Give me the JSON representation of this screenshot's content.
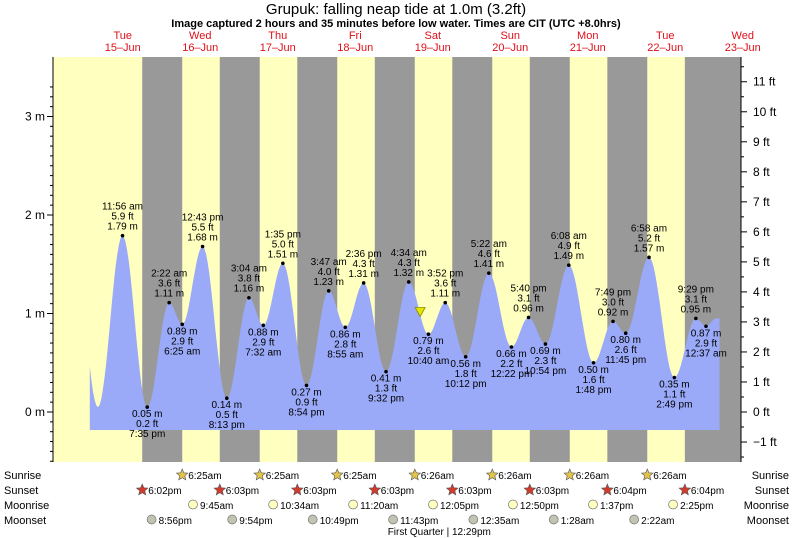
{
  "header": {
    "title": "Grupuk: falling  neap tide at 1.0m (3.2ft)",
    "subtitle": "Image captured 2 hours and 35 minutes before low water. Times are CIT (UTC +8.0hrs)"
  },
  "days": [
    {
      "dow": "Tue",
      "date": "15–Jun"
    },
    {
      "dow": "Wed",
      "date": "16–Jun"
    },
    {
      "dow": "Thu",
      "date": "17–Jun"
    },
    {
      "dow": "Fri",
      "date": "18–Jun"
    },
    {
      "dow": "Sat",
      "date": "19–Jun"
    },
    {
      "dow": "Sun",
      "date": "20–Jun"
    },
    {
      "dow": "Mon",
      "date": "21–Jun"
    },
    {
      "dow": "Tue",
      "date": "22–Jun"
    },
    {
      "dow": "Wed",
      "date": "23–Jun"
    }
  ],
  "chart_data": {
    "type": "area",
    "title": "Grupuk: falling  neap tide at 1.0m (3.2ft)",
    "x_unit": "hours from 15-Jun 00:00 (CIT)",
    "y_left": {
      "unit": "m",
      "ticks": [
        "0 m",
        "1 m",
        "2 m",
        "3 m"
      ],
      "range": [
        -0.55,
        3.4
      ]
    },
    "y_right": {
      "unit": "ft",
      "ticks": [
        "−1 ft",
        "0 ft",
        "1 ft",
        "2 ft",
        "3 ft",
        "4 ft",
        "5 ft",
        "6 ft",
        "7 ft",
        "8 ft",
        "9 ft",
        "10 ft",
        "11 ft"
      ]
    },
    "current_level_m": 1.0,
    "extremes": [
      {
        "x": 11.93,
        "m": 1.79,
        "time": "11:56 am",
        "ft": "5.9 ft",
        "mt": "1.79 m",
        "pos": "above"
      },
      {
        "x": 19.58,
        "m": 0.05,
        "time": "7:35 pm",
        "ft": "0.2 ft",
        "mt": "0.05 m",
        "pos": "below"
      },
      {
        "x": 26.37,
        "m": 1.11,
        "time": "2:22 am",
        "ft": "3.6 ft",
        "mt": "1.11 m",
        "pos": "above"
      },
      {
        "x": 30.42,
        "m": 0.89,
        "time": "6:25 am",
        "ft": "2.9 ft",
        "mt": "0.89 m",
        "pos": "below"
      },
      {
        "x": 36.72,
        "m": 1.68,
        "time": "12:43 pm",
        "ft": "5.5 ft",
        "mt": "1.68 m",
        "pos": "above"
      },
      {
        "x": 44.22,
        "m": 0.14,
        "time": "8:13 pm",
        "ft": "0.5 ft",
        "mt": "0.14 m",
        "pos": "below"
      },
      {
        "x": 51.07,
        "m": 1.16,
        "time": "3:04 am",
        "ft": "3.8 ft",
        "mt": "1.16 m",
        "pos": "above"
      },
      {
        "x": 55.53,
        "m": 0.88,
        "time": "7:32 am",
        "ft": "2.9 ft",
        "mt": "0.88 m",
        "pos": "below"
      },
      {
        "x": 61.58,
        "m": 1.51,
        "time": "1:35 pm",
        "ft": "5.0 ft",
        "mt": "1.51 m",
        "pos": "above"
      },
      {
        "x": 68.9,
        "m": 0.27,
        "time": "8:54 pm",
        "ft": "0.9 ft",
        "mt": "0.27 m",
        "pos": "below"
      },
      {
        "x": 75.78,
        "m": 1.23,
        "time": "3:47 am",
        "ft": "4.0 ft",
        "mt": "1.23 m",
        "pos": "above"
      },
      {
        "x": 80.92,
        "m": 0.86,
        "time": "8:55 am",
        "ft": "2.8 ft",
        "mt": "0.86 m",
        "pos": "below"
      },
      {
        "x": 86.6,
        "m": 1.31,
        "time": "2:36 pm",
        "ft": "4.3 ft",
        "mt": "1.31 m",
        "pos": "above"
      },
      {
        "x": 93.53,
        "m": 0.41,
        "time": "9:32 pm",
        "ft": "1.3 ft",
        "mt": "0.41 m",
        "pos": "below"
      },
      {
        "x": 100.57,
        "m": 1.32,
        "time": "4:34 am",
        "ft": "4.3 ft",
        "mt": "1.32 m",
        "pos": "above"
      },
      {
        "x": 106.67,
        "m": 0.79,
        "time": "10:40 am",
        "ft": "2.6 ft",
        "mt": "0.79 m",
        "pos": "below"
      },
      {
        "x": 111.87,
        "m": 1.11,
        "time": "3:52 pm",
        "ft": "3.6 ft",
        "mt": "1.11 m",
        "pos": "above"
      },
      {
        "x": 118.2,
        "m": 0.56,
        "time": "10:12 pm",
        "ft": "1.8 ft",
        "mt": "0.56 m",
        "pos": "below"
      },
      {
        "x": 125.37,
        "m": 1.41,
        "time": "5:22 am",
        "ft": "4.6 ft",
        "mt": "1.41 m",
        "pos": "above"
      },
      {
        "x": 132.37,
        "m": 0.66,
        "time": "12:22 pm",
        "ft": "2.2 ft",
        "mt": "0.66 m",
        "pos": "below"
      },
      {
        "x": 137.67,
        "m": 0.96,
        "time": "5:40 pm",
        "ft": "3.1 ft",
        "mt": "0.96 m",
        "pos": "above"
      },
      {
        "x": 142.9,
        "m": 0.69,
        "time": "10:54 pm",
        "ft": "2.3 ft",
        "mt": "0.69 m",
        "pos": "below"
      },
      {
        "x": 150.13,
        "m": 1.49,
        "time": "6:08 am",
        "ft": "4.9 ft",
        "mt": "1.49 m",
        "pos": "above"
      },
      {
        "x": 157.8,
        "m": 0.5,
        "time": "1:48 pm",
        "ft": "1.6 ft",
        "mt": "0.50 m",
        "pos": "below"
      },
      {
        "x": 163.82,
        "m": 0.92,
        "time": "7:49 pm",
        "ft": "3.0 ft",
        "mt": "0.92 m",
        "pos": "above"
      },
      {
        "x": 167.75,
        "m": 0.8,
        "time": "11:45 pm",
        "ft": "2.6 ft",
        "mt": "0.80 m",
        "pos": "below"
      },
      {
        "x": 174.97,
        "m": 1.57,
        "time": "6:58 am",
        "ft": "5.2 ft",
        "mt": "1.57 m",
        "pos": "above"
      },
      {
        "x": 182.82,
        "m": 0.35,
        "time": "2:49 pm",
        "ft": "1.1 ft",
        "mt": "0.35 m",
        "pos": "below"
      },
      {
        "x": 189.48,
        "m": 0.95,
        "time": "9:29 pm",
        "ft": "3.1 ft",
        "mt": "0.95 m",
        "pos": "above"
      },
      {
        "x": 192.62,
        "m": 0.87,
        "time": "12:37 am",
        "ft": "2.9 ft",
        "mt": "0.87 m",
        "pos": "below"
      }
    ]
  },
  "rows": {
    "sunrise": {
      "label": "Sunrise",
      "events": [
        {
          "x": 30.42,
          "time": "6:25am"
        },
        {
          "x": 54.42,
          "time": "6:25am"
        },
        {
          "x": 78.42,
          "time": "6:25am"
        },
        {
          "x": 102.43,
          "time": "6:26am"
        },
        {
          "x": 126.43,
          "time": "6:26am"
        },
        {
          "x": 150.43,
          "time": "6:26am"
        },
        {
          "x": 174.43,
          "time": "6:26am"
        }
      ]
    },
    "sunset": {
      "label": "Sunset",
      "events": [
        {
          "x": 18.03,
          "time": "6:02pm"
        },
        {
          "x": 42.05,
          "time": "6:03pm"
        },
        {
          "x": 66.05,
          "time": "6:03pm"
        },
        {
          "x": 90.05,
          "time": "6:03pm"
        },
        {
          "x": 114.05,
          "time": "6:03pm"
        },
        {
          "x": 138.05,
          "time": "6:03pm"
        },
        {
          "x": 162.07,
          "time": "6:04pm"
        },
        {
          "x": 186.07,
          "time": "6:04pm"
        }
      ]
    },
    "moonrise": {
      "label": "Moonrise",
      "events": [
        {
          "x": 33.75,
          "time": "9:45am"
        },
        {
          "x": 58.57,
          "time": "10:34am"
        },
        {
          "x": 83.33,
          "time": "11:20am"
        },
        {
          "x": 108.08,
          "time": "12:05pm"
        },
        {
          "x": 132.83,
          "time": "12:50pm"
        },
        {
          "x": 157.62,
          "time": "1:37pm"
        },
        {
          "x": 182.42,
          "time": "2:25pm"
        }
      ]
    },
    "moonset": {
      "label": "Moonset",
      "events": [
        {
          "x": 20.93,
          "time": "8:56pm"
        },
        {
          "x": 45.9,
          "time": "9:54pm"
        },
        {
          "x": 70.82,
          "time": "10:49pm"
        },
        {
          "x": 95.72,
          "time": "11:43pm"
        },
        {
          "x": 120.58,
          "time": "12:35am"
        },
        {
          "x": 145.47,
          "time": "1:28am"
        },
        {
          "x": 170.37,
          "time": "2:22am"
        }
      ]
    },
    "moon_phase": {
      "x": 108.48,
      "text": "First Quarter | 12:29pm"
    }
  },
  "colors": {
    "day_bg": "#ffffc0",
    "night_bg": "#999999",
    "water": "#9aaaf8",
    "day_label": "#e0101a",
    "sun_star": "#e2c44a",
    "sunset_star": "#d23b2b",
    "moonrise": "#ffffc0",
    "moonset": "#c0c4b0",
    "current_marker": "#e6e600"
  },
  "icons": {
    "sunrise": "star-icon",
    "sunset": "star-icon",
    "moonrise": "moon-circle-icon",
    "moonset": "moon-circle-icon",
    "current": "triangle-down-icon"
  }
}
